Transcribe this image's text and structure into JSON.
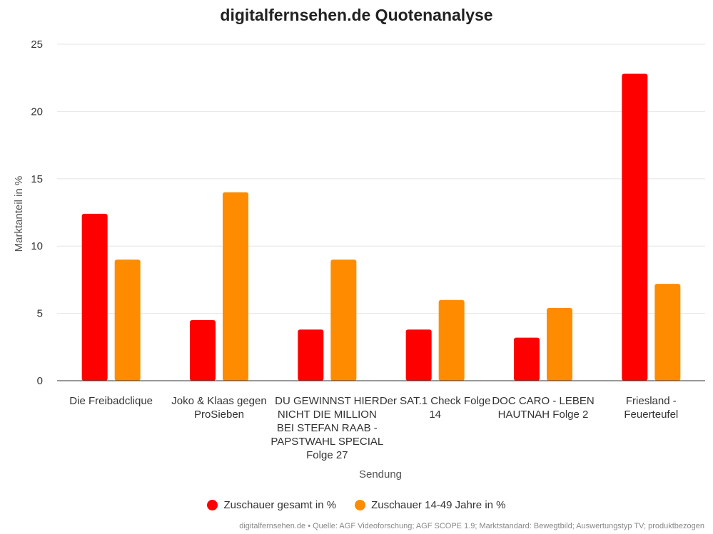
{
  "chart_data": {
    "type": "bar",
    "title": "digitalfernsehen.de Quotenanalyse",
    "xlabel": "Sendung",
    "ylabel": "Marktanteil in %",
    "ylim": [
      0,
      25
    ],
    "yticks": [
      0,
      5,
      10,
      15,
      20,
      25
    ],
    "grid": true,
    "legend_position": "bottom",
    "categories": [
      [
        "Die Freibadclique"
      ],
      [
        "Joko & Klaas gegen",
        "ProSieben"
      ],
      [
        "DU GEWINNST HIER",
        "NICHT DIE MILLION",
        "BEI STEFAN RAAB -",
        "PAPSTWAHL SPECIAL",
        "Folge 27"
      ],
      [
        "Der SAT.1 Check Folge",
        "14"
      ],
      [
        "DOC CARO - LEBEN",
        "HAUTNAH Folge 2"
      ],
      [
        "Friesland -",
        "Feuerteufel"
      ]
    ],
    "series": [
      {
        "name": "Zuschauer gesamt in %",
        "color": "#ff0000",
        "values": [
          12.4,
          4.5,
          3.8,
          3.8,
          3.2,
          22.8
        ]
      },
      {
        "name": "Zuschauer 14-49 Jahre in %",
        "color": "#ff8c00",
        "values": [
          9.0,
          14.0,
          9.0,
          6.0,
          5.4,
          7.2
        ]
      }
    ]
  },
  "footer": {
    "source": "digitalfernsehen.de • Quelle: AGF Videoforschung; AGF SCOPE 1.9; Marktstandard: Bewegtbild; Auswertungstyp TV; produktbezogen"
  }
}
